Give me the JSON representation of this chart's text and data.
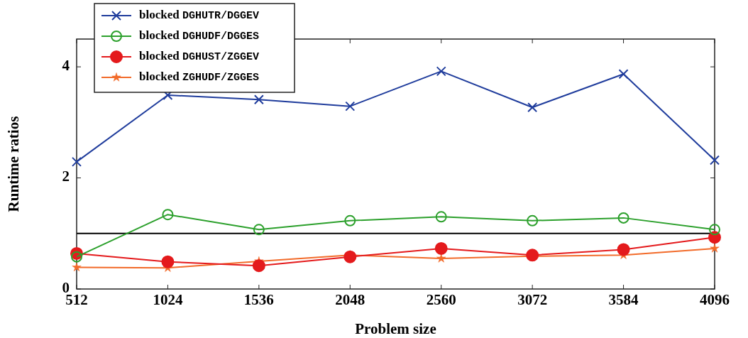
{
  "chart_data": {
    "type": "line",
    "xlabel": "Problem size",
    "ylabel": "Runtime ratios",
    "x": [
      512,
      1024,
      1536,
      2048,
      2560,
      3072,
      3584,
      4096
    ],
    "xlim": [
      512,
      4096
    ],
    "xticks": [
      512,
      1024,
      1536,
      2048,
      2560,
      3072,
      3584,
      4096
    ],
    "ylim": [
      0,
      4.5
    ],
    "yticks": [
      0,
      2,
      4
    ],
    "grid": false,
    "legend": "top left",
    "ref_lines": [
      {
        "axis": "y",
        "value": 1,
        "color": "#000000"
      }
    ],
    "series": [
      {
        "name": "blocked DGHUTR/DGGEV",
        "color": "#1f3c9c",
        "marker": "cross",
        "values": [
          2.29,
          3.49,
          3.41,
          3.29,
          3.92,
          3.27,
          3.87,
          2.32
        ]
      },
      {
        "name": "blocked DGHUDF/DGGES",
        "color": "#2ca02c",
        "marker": "circle",
        "values": [
          0.58,
          1.34,
          1.07,
          1.23,
          1.3,
          1.23,
          1.28,
          1.07
        ]
      },
      {
        "name": "blocked DGHUST/ZGGEV",
        "color": "#e41a1c",
        "marker": "circle",
        "values": [
          0.64,
          0.49,
          0.42,
          0.58,
          0.73,
          0.61,
          0.71,
          0.93
        ]
      },
      {
        "name": "blocked ZGHUDF/ZGGES",
        "color": "#f26b2a",
        "marker": "star",
        "values": [
          0.39,
          0.38,
          0.5,
          0.61,
          0.55,
          0.59,
          0.61,
          0.73
        ]
      }
    ]
  }
}
